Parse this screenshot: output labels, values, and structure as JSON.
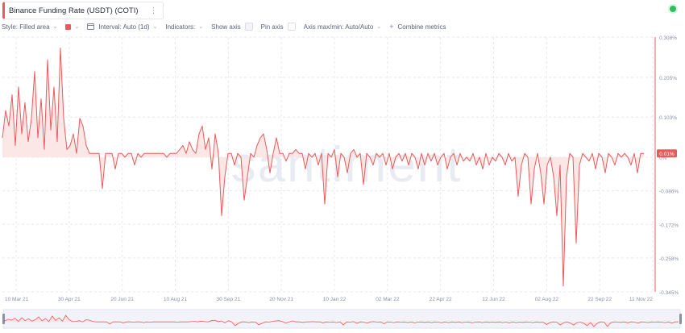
{
  "header": {
    "metric_title": "Binance Funding Rate (USDT) (COTI)",
    "menu_glyph": "⋮"
  },
  "toolbar": {
    "style_label": "Style: Filled area",
    "interval_label": "Interval: Auto (1d)",
    "indicators_label": "Indicators:",
    "show_axis_label": "Show axis",
    "pin_axis_label": "Pin axis",
    "axis_minmax_label": "Axis max/min: Auto/Auto",
    "combine_label": "Combine metrics",
    "chevron": "⌄",
    "plus": "+"
  },
  "colors": {
    "series": "#e85b5b",
    "fill": "#fbe3e3",
    "grid": "#e6e8ee",
    "watermark": "#e9ebf2",
    "status": "#2fbe62"
  },
  "icons": [
    "menu-dots-icon",
    "chevron-down-icon",
    "calendar-icon",
    "plus-icon",
    "status-dot-icon"
  ],
  "chart_data": {
    "type": "area",
    "watermark": "santiment",
    "current_value_label": "0.01%",
    "y_ticks": [
      "0.308%",
      "0.205%",
      "0.103%",
      "0%",
      "-0.086%",
      "-0.172%",
      "-0.258%",
      "-0.345%"
    ],
    "y_tick_values": [
      0.308,
      0.205,
      0.103,
      0,
      -0.086,
      -0.172,
      -0.258,
      -0.345
    ],
    "x_ticks": [
      "10 Mar 21",
      "30 Apr 21",
      "20 Jun 21",
      "10 Aug 21",
      "30 Sep 21",
      "20 Nov 21",
      "10 Jan 22",
      "02 Mar 22",
      "22 Apr 22",
      "12 Jun 22",
      "02 Aug 22",
      "22 Sep 22",
      "11 Nov 22"
    ],
    "x_range": [
      "2021-03-10",
      "2022-11-11"
    ],
    "y_range": [
      -0.345,
      0.308
    ],
    "grid": true,
    "series": [
      {
        "values": [
          0.05,
          0.12,
          0.08,
          0.16,
          0.03,
          0.18,
          0.06,
          0.14,
          0.04,
          0.1,
          0.22,
          0.05,
          0.15,
          0.02,
          0.25,
          0.07,
          0.18,
          0.04,
          0.28,
          0.1,
          0.02,
          0.03,
          0.06,
          0.01,
          0.1,
          0.08,
          0.03,
          0.01,
          0.01,
          0.01,
          0.01,
          -0.08,
          0.01,
          0.01,
          0.01,
          -0.03,
          0.01,
          0.01,
          0.0,
          0.01,
          0.01,
          -0.02,
          0.01,
          0.0,
          0.01,
          0.01,
          0.01,
          0.01,
          0.01,
          0.01,
          0.01,
          0.0,
          0.01,
          0.01,
          0.01,
          0.02,
          0.03,
          0.01,
          0.04,
          0.02,
          0.01,
          0.06,
          0.08,
          0.02,
          0.05,
          -0.03,
          0.06,
          0.01,
          -0.15,
          -0.05,
          0.01,
          0.01,
          -0.02,
          0.01,
          0.0,
          -0.11,
          -0.05,
          0.01,
          0.0,
          0.03,
          0.05,
          0.06,
          0.02,
          -0.04,
          0.01,
          0.05,
          0.01,
          0.01,
          -0.01,
          0.01,
          0.01,
          0.02,
          0.01,
          0.01,
          -0.03,
          0.01,
          0.0,
          0.01,
          -0.02,
          0.01,
          -0.12,
          0.01,
          0.0,
          0.02,
          -0.05,
          0.01,
          0.0,
          -0.04,
          0.01,
          0.02,
          0.0,
          0.01,
          -0.07,
          0.01,
          0.0,
          -0.02,
          0.01,
          0.0,
          0.01,
          -0.02,
          0.01,
          -0.03,
          0.0,
          0.01,
          -0.01,
          0.01,
          -0.02,
          0.01,
          0.0,
          -0.03,
          0.01,
          -0.02,
          0.01,
          -0.01,
          0.01,
          -0.02,
          0.0,
          0.01,
          -0.03,
          0.0,
          0.01,
          -0.02,
          0.01,
          -0.01,
          0.0,
          -0.01,
          0.01,
          -0.02,
          0.0,
          -0.03,
          0.01,
          -0.02,
          0.0,
          -0.01,
          0.01,
          0.0,
          -0.02,
          0.01,
          -0.01,
          0.0,
          -0.1,
          -0.02,
          0.01,
          0.0,
          -0.12,
          -0.03,
          0.01,
          -0.04,
          -0.12,
          -0.02,
          0.0,
          -0.05,
          -0.15,
          -0.02,
          -0.33,
          -0.05,
          0.01,
          0.0,
          -0.22,
          -0.02,
          0.01,
          0.0,
          -0.01,
          0.01,
          -0.03,
          0.01,
          0.0,
          -0.04,
          0.01,
          0.0,
          -0.02,
          0.01,
          0.0,
          0.01,
          0.0,
          -0.02,
          0.01,
          -0.04,
          0.01,
          0.01
        ]
      }
    ]
  }
}
